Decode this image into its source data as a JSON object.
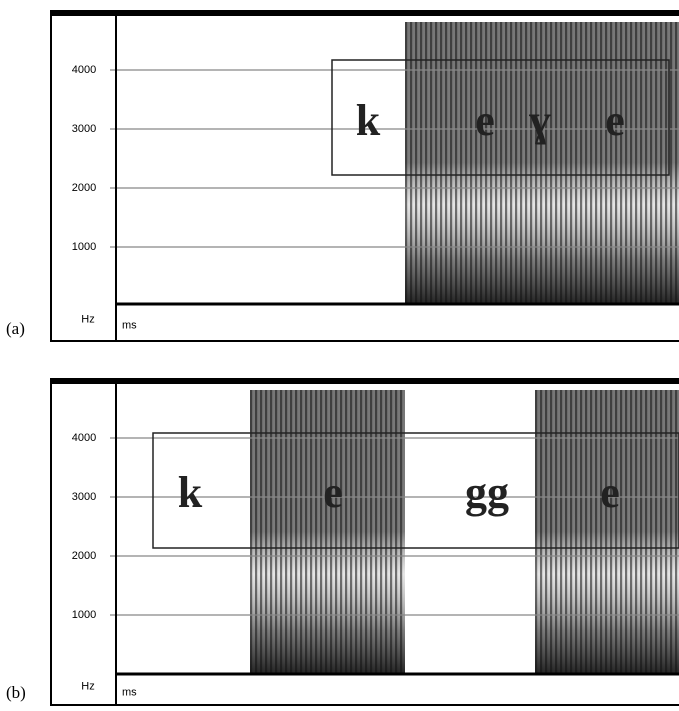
{
  "panels": [
    {
      "label": "(a)",
      "yticks": [
        "1000",
        "2000",
        "3000",
        "4000"
      ],
      "y_unit": "Hz",
      "x_unit": "ms",
      "segments": [
        "k",
        "e",
        "ɣ",
        "e"
      ]
    },
    {
      "label": "(b)",
      "yticks": [
        "1000",
        "2000",
        "3000",
        "4000"
      ],
      "y_unit": "Hz",
      "x_unit": "ms",
      "segments": [
        "k",
        "e",
        "gg",
        "e"
      ]
    }
  ]
}
